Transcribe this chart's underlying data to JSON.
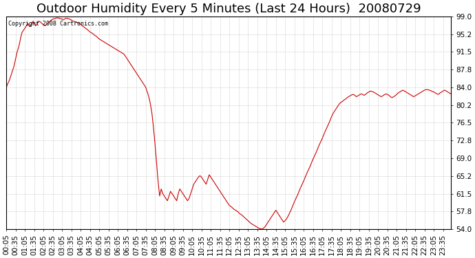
{
  "title": "Outdoor Humidity Every 5 Minutes (Last 24 Hours)  20080729",
  "copyright_text": "Copyright 2008 Cartronics.com",
  "line_color": "#cc0000",
  "background_color": "#ffffff",
  "grid_color": "#aaaaaa",
  "yticks": [
    54.0,
    57.8,
    61.5,
    65.2,
    69.0,
    72.8,
    76.5,
    80.2,
    84.0,
    87.8,
    91.5,
    95.2,
    99.0
  ],
  "ymin": 54.0,
  "ymax": 99.0,
  "title_fontsize": 13,
  "tick_fontsize": 7.5,
  "humidity_data": [
    84.0,
    84.8,
    85.5,
    86.5,
    87.5,
    88.5,
    90.0,
    91.5,
    92.5,
    94.0,
    95.5,
    96.0,
    96.5,
    97.0,
    97.5,
    96.8,
    97.2,
    97.8,
    97.5,
    97.0,
    97.5,
    98.0,
    97.8,
    97.5,
    97.2,
    97.0,
    97.3,
    97.6,
    97.9,
    98.2,
    98.4,
    98.5,
    98.6,
    98.7,
    98.6,
    98.5,
    98.4,
    98.3,
    98.5,
    98.6,
    98.5,
    98.4,
    98.2,
    98.0,
    97.9,
    97.8,
    97.7,
    97.5,
    97.3,
    97.0,
    96.8,
    96.5,
    96.3,
    96.0,
    95.7,
    95.5,
    95.3,
    95.0,
    94.8,
    94.5,
    94.2,
    94.0,
    93.8,
    93.6,
    93.4,
    93.2,
    93.0,
    92.8,
    92.6,
    92.4,
    92.2,
    92.0,
    91.8,
    91.6,
    91.4,
    91.2,
    91.0,
    90.5,
    90.0,
    89.5,
    89.0,
    88.5,
    88.0,
    87.5,
    87.0,
    86.5,
    86.0,
    85.5,
    85.0,
    84.5,
    84.0,
    83.0,
    82.0,
    80.5,
    78.5,
    75.5,
    72.0,
    68.0,
    64.0,
    61.0,
    62.5,
    61.5,
    61.0,
    60.5,
    60.0,
    61.0,
    62.0,
    61.5,
    61.0,
    60.5,
    60.0,
    61.5,
    62.5,
    62.0,
    61.5,
    61.0,
    60.5,
    60.0,
    60.5,
    61.5,
    62.5,
    63.5,
    64.0,
    64.5,
    65.0,
    65.3,
    65.0,
    64.5,
    64.0,
    63.5,
    64.5,
    65.5,
    65.0,
    64.5,
    64.0,
    63.5,
    63.0,
    62.5,
    62.0,
    61.5,
    61.0,
    60.5,
    60.0,
    59.5,
    59.0,
    58.8,
    58.5,
    58.2,
    58.0,
    57.8,
    57.5,
    57.2,
    57.0,
    56.7,
    56.4,
    56.1,
    55.8,
    55.5,
    55.2,
    55.0,
    54.8,
    54.6,
    54.4,
    54.2,
    54.1,
    54.0,
    54.2,
    54.5,
    55.0,
    55.5,
    56.0,
    56.5,
    57.0,
    57.5,
    58.0,
    57.5,
    57.0,
    56.5,
    56.0,
    55.5,
    55.8,
    56.2,
    56.8,
    57.5,
    58.2,
    59.0,
    59.8,
    60.5,
    61.2,
    62.0,
    62.8,
    63.5,
    64.2,
    65.0,
    65.8,
    66.5,
    67.2,
    68.0,
    68.8,
    69.5,
    70.2,
    71.0,
    71.8,
    72.5,
    73.2,
    74.0,
    74.8,
    75.5,
    76.2,
    77.0,
    77.8,
    78.5,
    79.0,
    79.5,
    80.0,
    80.5,
    80.8,
    81.0,
    81.3,
    81.5,
    81.8,
    82.0,
    82.2,
    82.4,
    82.5,
    82.3,
    82.0,
    82.2,
    82.4,
    82.6,
    82.5,
    82.3,
    82.5,
    82.8,
    83.0,
    83.2,
    83.1,
    83.0,
    82.8,
    82.6,
    82.4,
    82.2,
    82.0,
    82.2,
    82.4,
    82.6,
    82.5,
    82.3,
    82.0,
    81.8,
    82.0,
    82.2,
    82.5,
    82.8,
    83.0,
    83.2,
    83.4,
    83.2,
    83.0,
    82.8,
    82.6,
    82.4,
    82.2,
    82.0,
    82.2,
    82.4,
    82.6,
    82.8,
    83.0,
    83.2,
    83.4,
    83.5,
    83.5,
    83.4,
    83.3,
    83.1,
    83.0,
    82.8,
    82.6,
    82.5,
    82.8,
    83.0,
    83.2,
    83.4,
    83.2,
    83.0,
    82.8,
    82.6
  ]
}
